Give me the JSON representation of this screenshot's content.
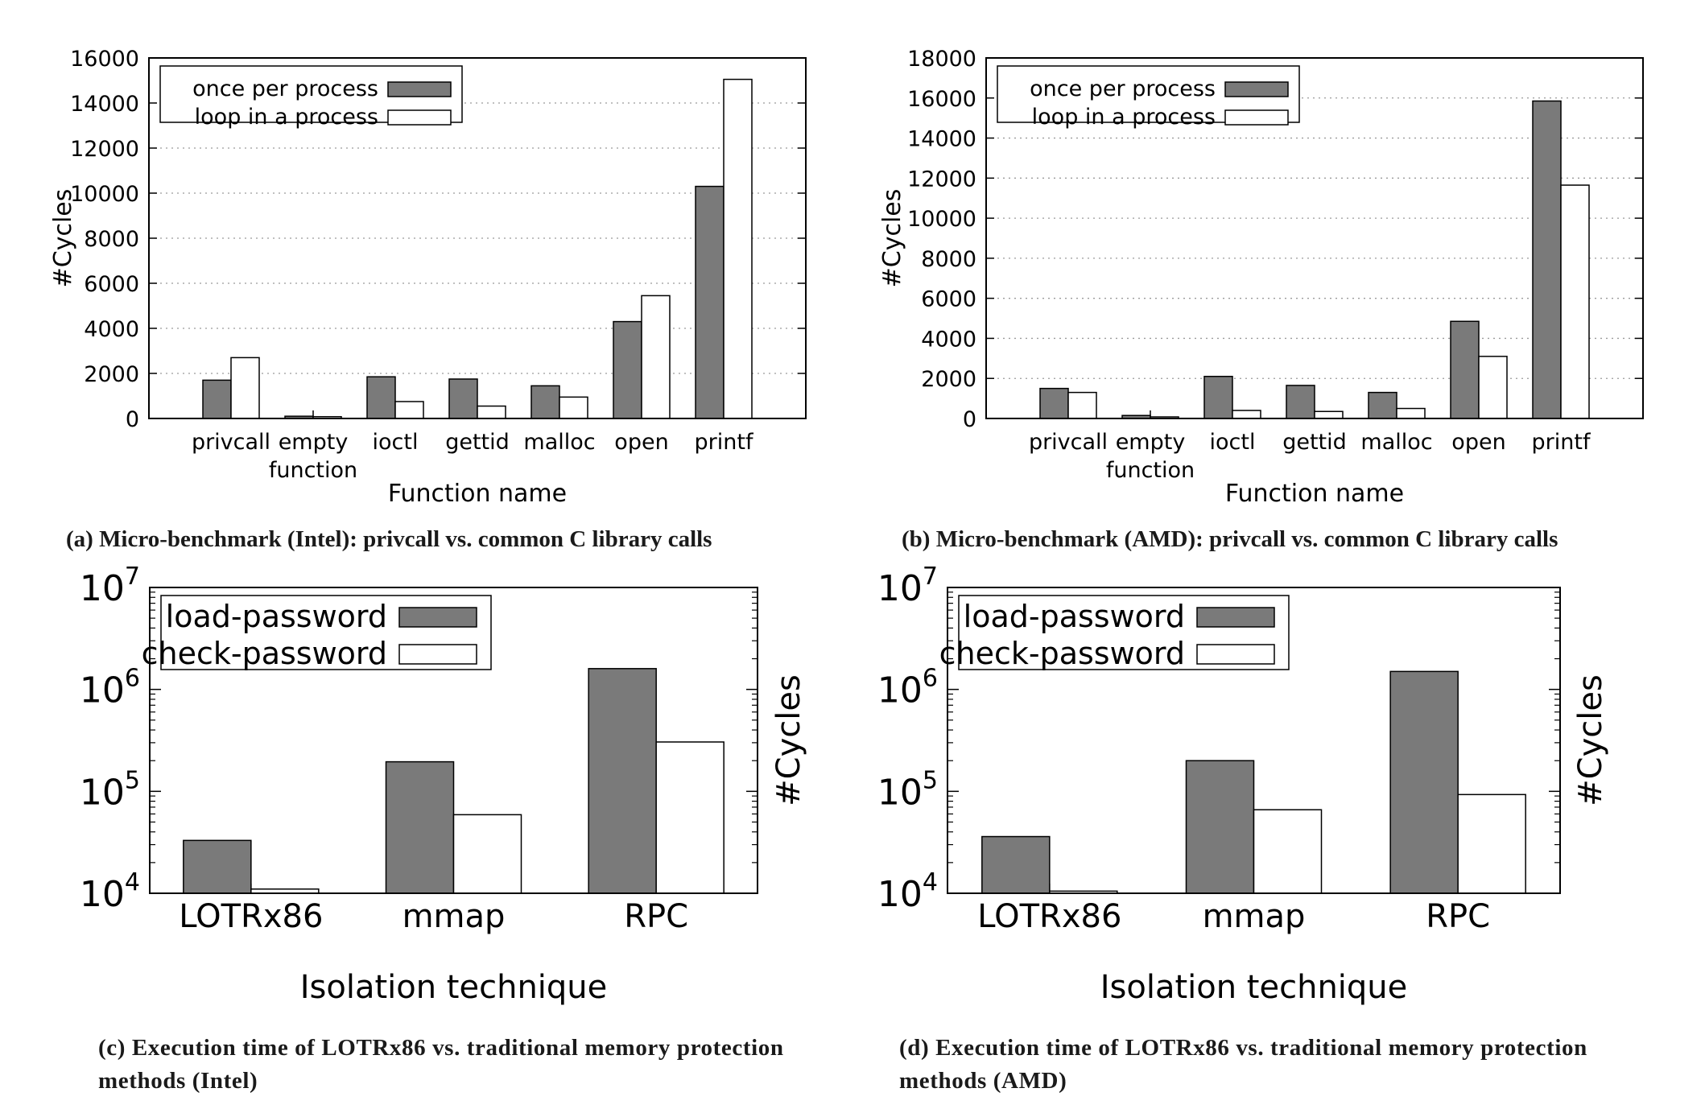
{
  "colors": {
    "series_dark": "#7a7a7a",
    "series_light": "#ffffff",
    "axis": "#000000",
    "grid": "#9a9a9a"
  },
  "captions": {
    "a": "(a) Micro-benchmark (Intel): privcall vs. common C library calls",
    "b": "(b) Micro-benchmark (AMD): privcall vs. common C library calls",
    "c": "(c) Execution time of LOTRx86 vs. traditional memory protection methods (Intel)",
    "d": "(d) Execution time of LOTRx86 vs. traditional memory protection methods (AMD)"
  },
  "chart_data": [
    {
      "id": "a",
      "type": "bar",
      "categories": [
        "privcall",
        "empty\nfunction",
        "ioctl",
        "gettid",
        "malloc",
        "open",
        "printf"
      ],
      "series": [
        {
          "name": "once per process",
          "values": [
            1700,
            100,
            1850,
            1750,
            1450,
            4300,
            10300
          ]
        },
        {
          "name": "loop in a process",
          "values": [
            2700,
            80,
            750,
            550,
            950,
            5450,
            15050
          ]
        }
      ],
      "xlabel": "Function name",
      "ylabel": "#Cycles",
      "ylim": [
        0,
        16000
      ],
      "yticks": [
        0,
        2000,
        4000,
        6000,
        8000,
        10000,
        12000,
        14000,
        16000
      ],
      "grid": true,
      "legend": "top-left"
    },
    {
      "id": "b",
      "type": "bar",
      "categories": [
        "privcall",
        "empty\nfunction",
        "ioctl",
        "gettid",
        "malloc",
        "open",
        "printf"
      ],
      "series": [
        {
          "name": "once per process",
          "values": [
            1500,
            150,
            2100,
            1650,
            1300,
            4850,
            15850
          ]
        },
        {
          "name": "loop in a process",
          "values": [
            1300,
            80,
            400,
            350,
            500,
            3100,
            11650
          ]
        }
      ],
      "xlabel": "Function name",
      "ylabel": "#Cycles",
      "ylim": [
        0,
        18000
      ],
      "yticks": [
        0,
        2000,
        4000,
        6000,
        8000,
        10000,
        12000,
        14000,
        16000,
        18000
      ],
      "grid": true,
      "legend": "top-left"
    },
    {
      "id": "c",
      "type": "bar",
      "log_scale": true,
      "categories": [
        "LOTRx86",
        "mmap",
        "RPC"
      ],
      "series": [
        {
          "name": "load-password",
          "values": [
            33000,
            195000,
            1600000
          ]
        },
        {
          "name": "check-password",
          "values": [
            11000,
            59000,
            305000
          ]
        }
      ],
      "xlabel": "Isolation technique",
      "ylabel": "#Cycles",
      "ylim": [
        10000,
        10000000
      ],
      "ytick_exponents": [
        4,
        5,
        6,
        7
      ],
      "grid": false,
      "legend": "top-left"
    },
    {
      "id": "d",
      "type": "bar",
      "log_scale": true,
      "categories": [
        "LOTRx86",
        "mmap",
        "RPC"
      ],
      "series": [
        {
          "name": "load-password",
          "values": [
            36000,
            200000,
            1500000
          ]
        },
        {
          "name": "check-password",
          "values": [
            10500,
            66000,
            93000
          ]
        }
      ],
      "xlabel": "Isolation technique",
      "ylabel": "#Cycles",
      "ylim": [
        10000,
        10000000
      ],
      "ytick_exponents": [
        4,
        5,
        6,
        7
      ],
      "grid": false,
      "legend": "top-left"
    }
  ]
}
